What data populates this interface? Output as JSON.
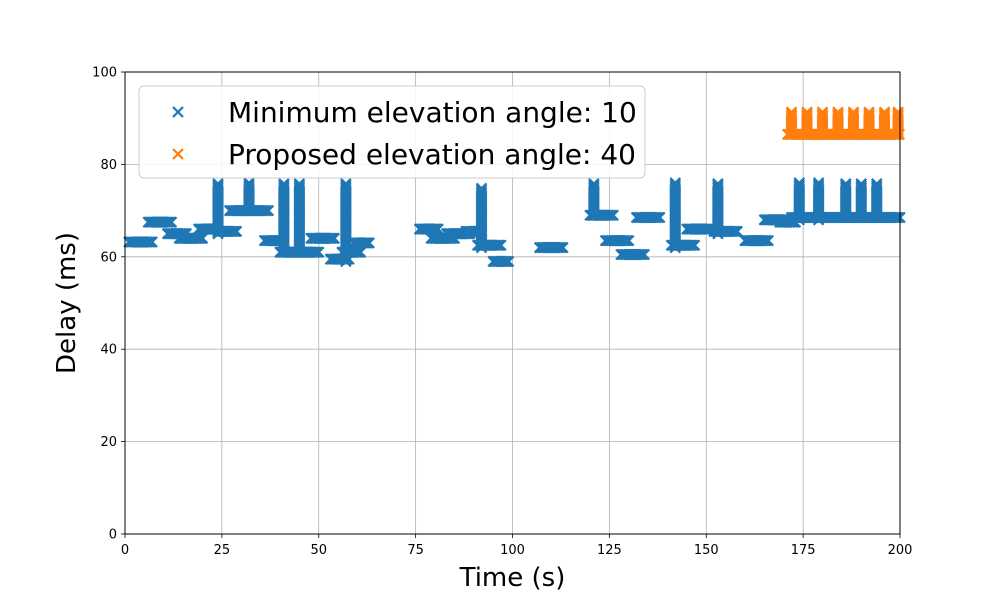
{
  "chart_data": {
    "type": "scatter",
    "title": "",
    "xlabel": "Time (s)",
    "ylabel": "Delay (ms)",
    "xlim": [
      0,
      200
    ],
    "ylim": [
      0,
      100
    ],
    "xticks": [
      "0",
      "25",
      "50",
      "75",
      "100",
      "125",
      "150",
      "175",
      "200"
    ],
    "yticks": [
      "0",
      "20",
      "40",
      "60",
      "80",
      "100"
    ],
    "grid": true,
    "legend_position": "top-left",
    "marker": "x",
    "series": [
      {
        "name": "Minimum elevation angle: 10",
        "color": "#1f77b4",
        "segments": [
          {
            "x": [
              1,
              7
            ],
            "y": 63.2
          },
          {
            "x": [
              6,
              12
            ],
            "y": 67.5
          },
          {
            "x": [
              11,
              16
            ],
            "y": 65.0
          },
          {
            "x": [
              14,
              20
            ],
            "y": 64.0
          },
          {
            "x": [
              19,
              24
            ],
            "y": 66.0
          },
          {
            "x": [
              24,
              29
            ],
            "y": 65.5
          },
          {
            "x": [
              27,
              37
            ],
            "y": 70.0
          },
          {
            "x": [
              36,
              41
            ],
            "y": 63.5
          },
          {
            "x": [
              40,
              50
            ],
            "y": 61.0
          },
          {
            "x": [
              48,
              54
            ],
            "y": 64.0
          },
          {
            "x": [
              53,
              58
            ],
            "y": 59.5
          },
          {
            "x": [
              56,
              61
            ],
            "y": 61.0
          },
          {
            "x": [
              59,
              63
            ],
            "y": 63.0
          },
          {
            "x": [
              76,
              81
            ],
            "y": 66.0
          },
          {
            "x": [
              79,
              85
            ],
            "y": 64.0
          },
          {
            "x": [
              83,
              89
            ],
            "y": 65.0
          },
          {
            "x": [
              88,
              92
            ],
            "y": 65.5
          },
          {
            "x": [
              91,
              97
            ],
            "y": 62.5
          },
          {
            "x": [
              95,
              99
            ],
            "y": 59.0
          },
          {
            "x": [
              107,
              113
            ],
            "y": 62.0
          },
          {
            "x": [
              120,
              126
            ],
            "y": 69.0
          },
          {
            "x": [
              124,
              130
            ],
            "y": 63.5
          },
          {
            "x": [
              128,
              134
            ],
            "y": 60.5
          },
          {
            "x": [
              132,
              138
            ],
            "y": 68.5
          },
          {
            "x": [
              141,
              147
            ],
            "y": 62.5
          },
          {
            "x": [
              145,
              151
            ],
            "y": 66.0
          },
          {
            "x": [
              152,
              158
            ],
            "y": 65.5
          },
          {
            "x": [
              160,
              166
            ],
            "y": 63.5
          },
          {
            "x": [
              165,
              171
            ],
            "y": 68.0
          },
          {
            "x": [
              169,
              173
            ],
            "y": 67.5
          },
          {
            "x": [
              172,
              200
            ],
            "y": 68.5
          }
        ],
        "spikes": [
          {
            "x": 24,
            "y": [
              65,
              76
            ]
          },
          {
            "x": 32,
            "y": [
              70,
              76
            ]
          },
          {
            "x": 41,
            "y": [
              61,
              76
            ]
          },
          {
            "x": 45,
            "y": [
              61,
              76
            ]
          },
          {
            "x": 57,
            "y": [
              59,
              76
            ]
          },
          {
            "x": 92,
            "y": [
              62,
              75
            ]
          },
          {
            "x": 121,
            "y": [
              69,
              76
            ]
          },
          {
            "x": 142,
            "y": [
              62,
              76
            ]
          },
          {
            "x": 153,
            "y": [
              65,
              76
            ]
          },
          {
            "x": 174,
            "y": [
              68,
              76
            ]
          },
          {
            "x": 179,
            "y": [
              68,
              76
            ]
          },
          {
            "x": 186,
            "y": [
              69,
              76
            ]
          },
          {
            "x": 190,
            "y": [
              69,
              76
            ]
          },
          {
            "x": 194,
            "y": [
              69,
              76
            ]
          }
        ]
      },
      {
        "name": "Proposed elevation angle: 40",
        "color": "#ff7f0e",
        "segments": [
          {
            "x": [
              171,
              200
            ],
            "y": 86.5
          }
        ],
        "spikes": [
          {
            "x": 172,
            "y": [
              86.5,
              91.5
            ]
          },
          {
            "x": 176,
            "y": [
              86.5,
              91.5
            ]
          },
          {
            "x": 180,
            "y": [
              86.5,
              91.5
            ]
          },
          {
            "x": 184,
            "y": [
              86.5,
              91.5
            ]
          },
          {
            "x": 188,
            "y": [
              86.5,
              91.5
            ]
          },
          {
            "x": 192,
            "y": [
              86.5,
              91.5
            ]
          },
          {
            "x": 196,
            "y": [
              86.5,
              91.5
            ]
          },
          {
            "x": 199.5,
            "y": [
              86.5,
              91.5
            ]
          }
        ]
      }
    ]
  }
}
